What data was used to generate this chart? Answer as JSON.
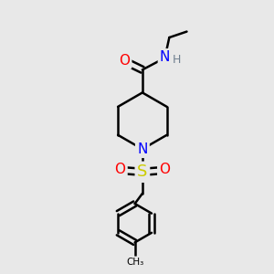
{
  "background_color": "#e8e8e8",
  "bond_color": "#000000",
  "bond_width": 1.8,
  "atom_colors": {
    "O": "#ff0000",
    "N": "#0000ff",
    "S": "#cccc00",
    "H": "#708090",
    "C": "#000000"
  },
  "font_size_atoms": 11,
  "fig_width": 3.0,
  "fig_height": 3.0,
  "dpi": 100
}
